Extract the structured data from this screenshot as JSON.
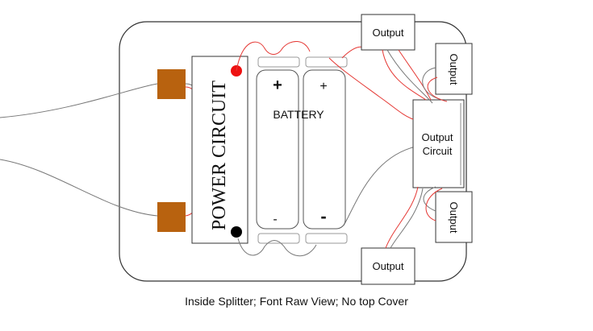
{
  "power_circuit_label": "POWER CIRCUIT",
  "battery_label": "BATTERY",
  "cell_left": {
    "plus": "+",
    "minus": "-"
  },
  "cell_right": {
    "plus": "+",
    "minus": "-"
  },
  "output_top": "Output",
  "output_right_upper": "Output",
  "output_right_lower": "Output",
  "output_bottom": "Output",
  "output_circuit_line1": "Output",
  "output_circuit_line2": "Circuit",
  "caption": "Inside Splitter; Font Raw View; No top Cover",
  "colors": {
    "wire_red": "#e53935",
    "wire_gray": "#777777",
    "terminal": "#b8620f",
    "positive_dot": "#ee1111",
    "negative_dot": "#000000"
  }
}
